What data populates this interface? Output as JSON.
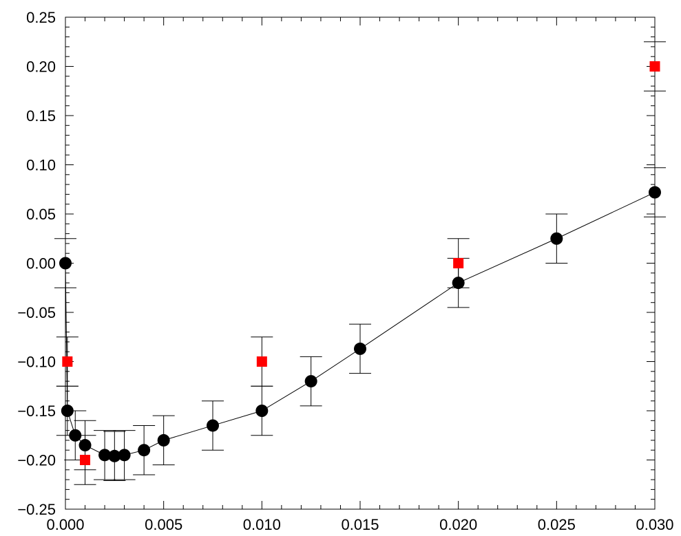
{
  "chart_data": {
    "type": "scatter",
    "title": "",
    "xlabel": "",
    "ylabel": "",
    "xlim": [
      0.0,
      0.03
    ],
    "ylim": [
      -0.25,
      0.25
    ],
    "x_ticks": [
      "0.000",
      "0.005",
      "0.010",
      "0.015",
      "0.020",
      "0.025",
      "0.030"
    ],
    "y_ticks": [
      "0.25",
      "0.20",
      "0.15",
      "0.10",
      "0.05",
      "0.00",
      "−0.05",
      "−0.10",
      "−0.15",
      "−0.20",
      "−0.25"
    ],
    "grid": false,
    "series": [
      {
        "marker": "circle",
        "color": "#000000",
        "connected": true,
        "x": [
          0.0,
          0.0001,
          0.0005,
          0.001,
          0.002,
          0.0025,
          0.003,
          0.004,
          0.005,
          0.0075,
          0.01,
          0.0125,
          0.015,
          0.02,
          0.025,
          0.03
        ],
        "y": [
          0.0,
          -0.15,
          -0.175,
          -0.185,
          -0.195,
          -0.196,
          -0.195,
          -0.19,
          -0.18,
          -0.165,
          -0.15,
          -0.12,
          -0.087,
          -0.02,
          0.025,
          0.072
        ],
        "err": [
          0.025,
          0.025,
          0.025,
          0.025,
          0.025,
          0.025,
          0.025,
          0.025,
          0.025,
          0.025,
          0.025,
          0.025,
          0.025,
          0.025,
          0.025,
          0.025
        ]
      },
      {
        "marker": "square",
        "color": "#ff0000",
        "connected": false,
        "x": [
          0.0001,
          0.001,
          0.01,
          0.02,
          0.03
        ],
        "y": [
          -0.1,
          -0.2,
          -0.1,
          0.0,
          0.2
        ],
        "err": [
          0.025,
          0.025,
          0.025,
          0.025,
          0.025
        ]
      }
    ]
  }
}
